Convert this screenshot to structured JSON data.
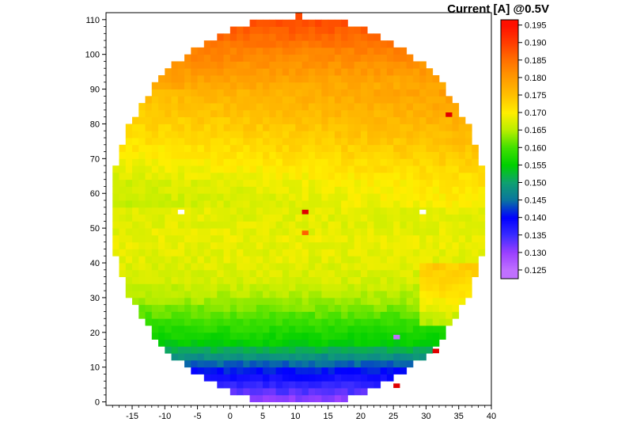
{
  "chart_data": {
    "type": "heatmap",
    "title": "",
    "xlabel": "",
    "ylabel": "",
    "xlim": [
      -19,
      40
    ],
    "ylim": [
      -1,
      112
    ],
    "x_ticks": [
      -15,
      -10,
      -5,
      0,
      5,
      10,
      15,
      20,
      25,
      30,
      35,
      40
    ],
    "y_ticks": [
      0,
      10,
      20,
      30,
      40,
      50,
      60,
      70,
      80,
      90,
      100,
      110
    ],
    "colorbar": {
      "label": "Current [A] @0.5V",
      "min": 0.1225,
      "max": 0.1965,
      "ticks": [
        0.125,
        0.13,
        0.135,
        0.14,
        0.145,
        0.15,
        0.155,
        0.16,
        0.165,
        0.17,
        0.175,
        0.18,
        0.185,
        0.19,
        0.195
      ],
      "tick_labels": [
        "0.125",
        "0.130",
        "0.135",
        "0.140",
        "0.145",
        "0.150",
        "0.155",
        "0.160",
        "0.165",
        "0.170",
        "0.175",
        "0.180",
        "0.185",
        "0.190",
        "0.195"
      ],
      "colors": [
        "#c070ff",
        "#9a40ff",
        "#3a2cff",
        "#0000ff",
        "#0a74a0",
        "#10a070",
        "#00d000",
        "#40e000",
        "#b8ee00",
        "#ffee00",
        "#ffc000",
        "#ff9a00",
        "#ff7000",
        "#ff3c00",
        "#ff1000"
      ]
    },
    "wafer": {
      "center": [
        10.5,
        55
      ],
      "radius_x": 28.8,
      "radius_y": 56
    },
    "row_profile": [
      {
        "y": 0,
        "value": 0.131
      },
      {
        "y": 4,
        "value": 0.136
      },
      {
        "y": 8,
        "value": 0.141
      },
      {
        "y": 12,
        "value": 0.148
      },
      {
        "y": 16,
        "value": 0.155
      },
      {
        "y": 20,
        "value": 0.158
      },
      {
        "y": 24,
        "value": 0.161
      },
      {
        "y": 28,
        "value": 0.164
      },
      {
        "y": 34,
        "value": 0.167
      },
      {
        "y": 40,
        "value": 0.168
      },
      {
        "y": 46,
        "value": 0.1685
      },
      {
        "y": 50,
        "value": 0.168
      },
      {
        "y": 56,
        "value": 0.168
      },
      {
        "y": 62,
        "value": 0.169
      },
      {
        "y": 70,
        "value": 0.172
      },
      {
        "y": 80,
        "value": 0.175
      },
      {
        "y": 90,
        "value": 0.178
      },
      {
        "y": 100,
        "value": 0.183
      },
      {
        "y": 106,
        "value": 0.187
      },
      {
        "y": 111,
        "value": 0.19
      }
    ]
  }
}
